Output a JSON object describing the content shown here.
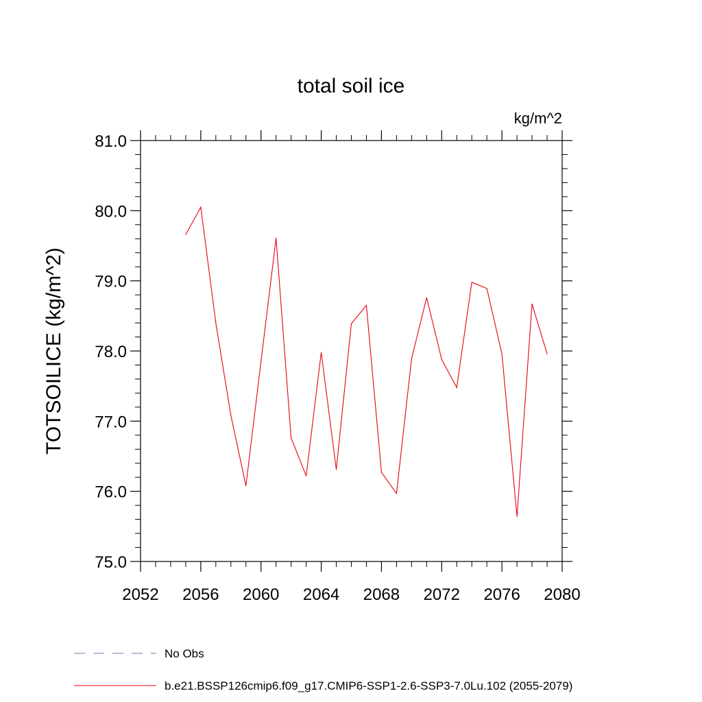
{
  "chart_data": {
    "type": "line",
    "title": "total soil ice",
    "units": "kg/m^2",
    "xlabel": "",
    "ylabel": "TOTSOILICE  (kg/m^2)",
    "xlim": [
      2052,
      2080
    ],
    "ylim": [
      75.0,
      81.0
    ],
    "xticks": [
      2052,
      2056,
      2060,
      2064,
      2068,
      2072,
      2076,
      2080
    ],
    "xtick_labels": [
      "2052",
      "2056",
      "2060",
      "2064",
      "2068",
      "2072",
      "2076",
      "2080"
    ],
    "yticks": [
      75.0,
      76.0,
      77.0,
      78.0,
      79.0,
      80.0,
      81.0
    ],
    "ytick_labels": [
      "75.0",
      "76.0",
      "77.0",
      "78.0",
      "79.0",
      "80.0",
      "81.0"
    ],
    "grid": false,
    "legend_position": "bottom",
    "series": [
      {
        "name": "b.e21.BSSP126cmip6.f09_g17.CMIP6-SSP1-2.6-SSP3-7.0Lu.102 (2055-2079)",
        "color": "#e8000b",
        "style": "solid",
        "x": [
          2055,
          2056,
          2057,
          2058,
          2059,
          2060,
          2061,
          2062,
          2063,
          2064,
          2065,
          2066,
          2067,
          2068,
          2069,
          2070,
          2071,
          2072,
          2073,
          2074,
          2075,
          2076,
          2077,
          2078,
          2079
        ],
        "y": [
          79.66,
          80.05,
          78.4,
          77.08,
          76.08,
          77.85,
          79.61,
          76.76,
          76.22,
          77.98,
          76.31,
          78.39,
          78.65,
          76.27,
          75.97,
          77.89,
          78.76,
          77.88,
          77.48,
          78.98,
          78.89,
          77.96,
          75.64,
          78.67,
          77.96
        ]
      }
    ],
    "legend": [
      {
        "label": "No Obs",
        "color": "#7a6fb0",
        "style": "dashed"
      },
      {
        "label": "b.e21.BSSP126cmip6.f09_g17.CMIP6-SSP1-2.6-SSP3-7.0Lu.102 (2055-2079)",
        "color": "#e8000b",
        "style": "solid"
      }
    ]
  }
}
